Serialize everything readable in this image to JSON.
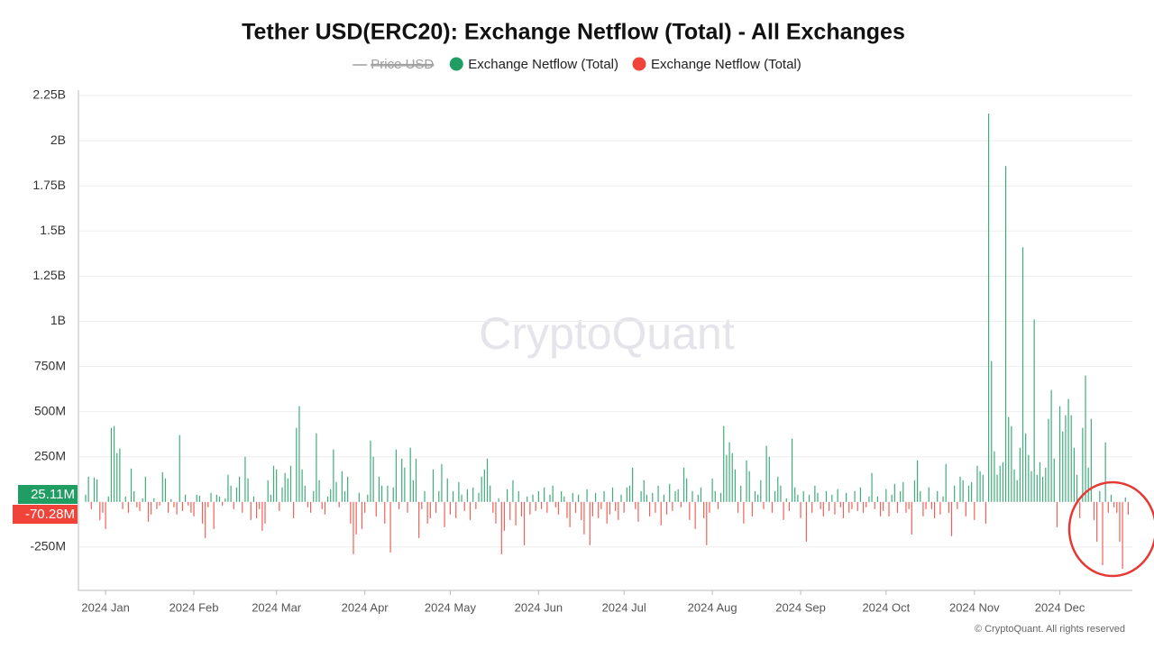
{
  "chart_data": {
    "type": "bar",
    "title": "Tether USD(ERC20): Exchange Netflow (Total) - All Exchanges",
    "watermark": "CryptoQuant",
    "footer": "© CryptoQuant. All rights reserved",
    "series": [
      {
        "name": "Price USD",
        "color": "#9e9e9e",
        "hidden": true
      },
      {
        "name": "Exchange Netflow (Total)",
        "color": "#1f9d63",
        "sign": "positive"
      },
      {
        "name": "Exchange Netflow (Total)",
        "color": "#f0443a",
        "sign": "negative"
      }
    ],
    "current_labels": [
      {
        "value": 25110000.0,
        "label": "25.11M"
      },
      {
        "value": -70280000.0,
        "label": "-70.28M"
      }
    ],
    "ylim": [
      -490000000.0,
      2280000000.0
    ],
    "yticks": [
      {
        "value": -250000000.0,
        "label": "-250M"
      },
      {
        "value": 250000000.0,
        "label": "250M"
      },
      {
        "value": 500000000.0,
        "label": "500M"
      },
      {
        "value": 750000000.0,
        "label": "750M"
      },
      {
        "value": 1000000000.0,
        "label": "1B"
      },
      {
        "value": 1250000000.0,
        "label": "1.25B"
      },
      {
        "value": 1500000000.0,
        "label": "1.5B"
      },
      {
        "value": 1750000000.0,
        "label": "1.75B"
      },
      {
        "value": 2000000000.0,
        "label": "2B"
      },
      {
        "value": 2250000000.0,
        "label": "2.25B"
      }
    ],
    "grid": true,
    "categories": [
      null,
      null,
      null,
      null,
      null,
      null,
      null,
      "2024 Jan",
      null,
      null,
      null,
      null,
      null,
      null,
      null,
      null,
      null,
      null,
      null,
      null,
      null,
      null,
      null,
      null,
      null,
      null,
      null,
      null,
      null,
      null,
      null,
      null,
      null,
      null,
      null,
      null,
      null,
      null,
      "2024 Feb",
      null,
      null,
      null,
      null,
      null,
      null,
      null,
      null,
      null,
      null,
      null,
      null,
      null,
      null,
      null,
      null,
      null,
      null,
      null,
      null,
      null,
      null,
      null,
      null,
      null,
      null,
      null,
      null,
      "2024 Mar",
      null,
      null,
      null,
      null,
      null,
      null,
      null,
      null,
      null,
      null,
      null,
      null,
      null,
      null,
      null,
      null,
      null,
      null,
      null,
      null,
      null,
      null,
      null,
      null,
      null,
      null,
      null,
      null,
      null,
      null,
      "2024 Apr",
      null,
      null,
      null,
      null,
      null,
      null,
      null,
      null,
      null,
      null,
      null,
      null,
      null,
      null,
      null,
      null,
      null,
      null,
      null,
      null,
      null,
      null,
      null,
      null,
      null,
      null,
      null,
      null,
      null,
      "2024 May",
      null,
      null,
      null,
      null,
      null,
      null,
      null,
      null,
      null,
      null,
      null,
      null,
      null,
      null,
      null,
      null,
      null,
      null,
      null,
      null,
      null,
      null,
      null,
      null,
      null,
      null,
      null,
      null,
      null,
      null,
      "2024 Jun",
      null,
      null,
      null,
      null,
      null,
      null,
      null,
      null,
      null,
      null,
      null,
      null,
      null,
      null,
      null,
      null,
      null,
      null,
      null,
      null,
      null,
      null,
      null,
      null,
      null,
      null,
      null,
      null,
      null,
      "2024 Jul",
      null,
      null,
      null,
      null,
      null,
      null,
      null,
      null,
      null,
      null,
      null,
      null,
      null,
      null,
      null,
      null,
      null,
      null,
      null,
      null,
      null,
      null,
      null,
      null,
      null,
      null,
      null,
      null,
      null,
      null,
      "2024 Aug",
      null,
      null,
      null,
      null,
      null,
      null,
      null,
      null,
      null,
      null,
      null,
      null,
      null,
      null,
      null,
      null,
      null,
      null,
      null,
      null,
      null,
      null,
      null,
      null,
      null,
      null,
      null,
      null,
      null,
      null,
      "2024 Sep",
      null,
      null,
      null,
      null,
      null,
      null,
      null,
      null,
      null,
      null,
      null,
      null,
      null,
      null,
      null,
      null,
      null,
      null,
      null,
      null,
      null,
      null,
      null,
      null,
      null,
      null,
      null,
      null,
      null,
      "2024 Oct",
      null,
      null,
      null,
      null,
      null,
      null,
      null,
      null,
      null,
      null,
      null,
      null,
      null,
      null,
      null,
      null,
      null,
      null,
      null,
      null,
      null,
      null,
      null,
      null,
      null,
      null,
      null,
      null,
      null,
      null,
      "2024 Nov",
      null,
      null,
      null,
      null,
      null,
      null,
      null,
      null,
      null,
      null,
      null,
      null,
      null,
      null,
      null,
      null,
      null,
      null,
      null,
      null,
      null,
      null,
      null,
      null,
      null,
      null,
      null,
      null,
      null,
      "2024 Dec",
      null,
      null,
      null,
      null,
      null,
      null,
      null,
      null,
      null,
      null,
      null,
      null,
      null,
      null,
      null,
      null,
      null,
      null,
      null,
      null,
      null,
      null,
      null,
      null
    ],
    "values": [
      40000000.0,
      140000000.0,
      -40000000.0,
      135000000.0,
      125000000.0,
      -100000000.0,
      -60000000.0,
      -150000000.0,
      30000000.0,
      410000000.0,
      420000000.0,
      270000000.0,
      295000000.0,
      -40000000.0,
      30000000.0,
      -60000000.0,
      185000000.0,
      60000000.0,
      -30000000.0,
      -50000000.0,
      20000000.0,
      140000000.0,
      -110000000.0,
      -70000000.0,
      20000000.0,
      -40000000.0,
      -20000000.0,
      165000000.0,
      130000000.0,
      -60000000.0,
      15000000.0,
      -30000000.0,
      -70000000.0,
      370000000.0,
      -50000000.0,
      40000000.0,
      -20000000.0,
      -60000000.0,
      -80000000.0,
      40000000.0,
      35000000.0,
      -120000000.0,
      -200000000.0,
      -30000000.0,
      50000000.0,
      -150000000.0,
      40000000.0,
      30000000.0,
      -20000000.0,
      20000000.0,
      150000000.0,
      90000000.0,
      -40000000.0,
      80000000.0,
      140000000.0,
      -60000000.0,
      250000000.0,
      130000000.0,
      -100000000.0,
      30000000.0,
      -90000000.0,
      -40000000.0,
      -160000000.0,
      -120000000.0,
      120000000.0,
      40000000.0,
      200000000.0,
      180000000.0,
      -50000000.0,
      80000000.0,
      160000000.0,
      130000000.0,
      200000000.0,
      -90000000.0,
      410000000.0,
      530000000.0,
      180000000.0,
      90000000.0,
      -30000000.0,
      -60000000.0,
      60000000.0,
      380000000.0,
      120000000.0,
      -40000000.0,
      -70000000.0,
      30000000.0,
      70000000.0,
      290000000.0,
      110000000.0,
      -30000000.0,
      170000000.0,
      60000000.0,
      140000000.0,
      -120000000.0,
      -290000000.0,
      -180000000.0,
      50000000.0,
      -150000000.0,
      -60000000.0,
      40000000.0,
      340000000.0,
      250000000.0,
      -80000000.0,
      140000000.0,
      90000000.0,
      -120000000.0,
      90000000.0,
      -280000000.0,
      80000000.0,
      290000000.0,
      -40000000.0,
      240000000.0,
      190000000.0,
      -60000000.0,
      300000000.0,
      120000000.0,
      240000000.0,
      -200000000.0,
      -40000000.0,
      60000000.0,
      -120000000.0,
      -90000000.0,
      180000000.0,
      -60000000.0,
      60000000.0,
      210000000.0,
      -140000000.0,
      130000000.0,
      -70000000.0,
      60000000.0,
      -90000000.0,
      110000000.0,
      40000000.0,
      -50000000.0,
      70000000.0,
      -100000000.0,
      80000000.0,
      -40000000.0,
      50000000.0,
      140000000.0,
      180000000.0,
      240000000.0,
      90000000.0,
      -60000000.0,
      -120000000.0,
      20000000.0,
      -290000000.0,
      -160000000.0,
      70000000.0,
      -100000000.0,
      120000000.0,
      -130000000.0,
      60000000.0,
      -80000000.0,
      -240000000.0,
      30000000.0,
      -70000000.0,
      40000000.0,
      -50000000.0,
      60000000.0,
      -40000000.0,
      80000000.0,
      -60000000.0,
      40000000.0,
      90000000.0,
      -30000000.0,
      -70000000.0,
      60000000.0,
      30000000.0,
      -90000000.0,
      -140000000.0,
      50000000.0,
      -60000000.0,
      40000000.0,
      -100000000.0,
      -180000000.0,
      70000000.0,
      -240000000.0,
      -80000000.0,
      50000000.0,
      -90000000.0,
      -40000000.0,
      60000000.0,
      -120000000.0,
      -70000000.0,
      80000000.0,
      -50000000.0,
      -100000000.0,
      40000000.0,
      -60000000.0,
      80000000.0,
      90000000.0,
      190000000.0,
      -40000000.0,
      -110000000.0,
      60000000.0,
      120000000.0,
      40000000.0,
      -80000000.0,
      50000000.0,
      -60000000.0,
      90000000.0,
      -130000000.0,
      40000000.0,
      -70000000.0,
      100000000.0,
      -50000000.0,
      60000000.0,
      70000000.0,
      -30000000.0,
      190000000.0,
      130000000.0,
      -100000000.0,
      60000000.0,
      -150000000.0,
      40000000.0,
      80000000.0,
      -90000000.0,
      -240000000.0,
      -60000000.0,
      130000000.0,
      60000000.0,
      -40000000.0,
      50000000.0,
      420000000.0,
      260000000.0,
      330000000.0,
      270000000.0,
      180000000.0,
      -60000000.0,
      90000000.0,
      -120000000.0,
      230000000.0,
      170000000.0,
      -80000000.0,
      60000000.0,
      40000000.0,
      120000000.0,
      -40000000.0,
      310000000.0,
      250000000.0,
      -60000000.0,
      60000000.0,
      140000000.0,
      90000000.0,
      -100000000.0,
      20000000.0,
      -50000000.0,
      350000000.0,
      80000000.0,
      40000000.0,
      -90000000.0,
      60000000.0,
      -220000000.0,
      40000000.0,
      -60000000.0,
      90000000.0,
      50000000.0,
      -40000000.0,
      -80000000.0,
      60000000.0,
      -50000000.0,
      40000000.0,
      -70000000.0,
      70000000.0,
      -30000000.0,
      -90000000.0,
      50000000.0,
      -60000000.0,
      -40000000.0,
      60000000.0,
      -50000000.0,
      80000000.0,
      -60000000.0,
      -30000000.0,
      30000000.0,
      160000000.0,
      -40000000.0,
      30000000.0,
      -80000000.0,
      -50000000.0,
      70000000.0,
      -80000000.0,
      40000000.0,
      100000000.0,
      -60000000.0,
      60000000.0,
      110000000.0,
      -60000000.0,
      -40000000.0,
      -180000000.0,
      120000000.0,
      230000000.0,
      60000000.0,
      -80000000.0,
      -40000000.0,
      80000000.0,
      -40000000.0,
      -90000000.0,
      60000000.0,
      -70000000.0,
      30000000.0,
      210000000.0,
      -60000000.0,
      -190000000.0,
      90000000.0,
      -40000000.0,
      140000000.0,
      120000000.0,
      -80000000.0,
      90000000.0,
      110000000.0,
      -100000000.0,
      200000000.0,
      170000000.0,
      150000000.0,
      -120000000.0,
      2150000000.0,
      780000000.0,
      280000000.0,
      150000000.0,
      200000000.0,
      220000000.0,
      1860000000.0,
      470000000.0,
      420000000.0,
      180000000.0,
      120000000.0,
      300000000.0,
      1410000000.0,
      380000000.0,
      260000000.0,
      170000000.0,
      1010000000.0,
      150000000.0,
      220000000.0,
      140000000.0,
      190000000.0,
      460000000.0,
      620000000.0,
      240000000.0,
      -140000000.0,
      530000000.0,
      390000000.0,
      480000000.0,
      570000000.0,
      480000000.0,
      300000000.0,
      150000000.0,
      -90000000.0,
      410000000.0,
      700000000.0,
      190000000.0,
      460000000.0,
      -100000000.0,
      -220000000.0,
      60000000.0,
      -350000000.0,
      330000000.0,
      -60000000.0,
      40000000.0,
      -30000000.0,
      -60000000.0,
      -220000000.0,
      -370000000.0,
      25110000.0,
      -70280000.0
    ]
  }
}
